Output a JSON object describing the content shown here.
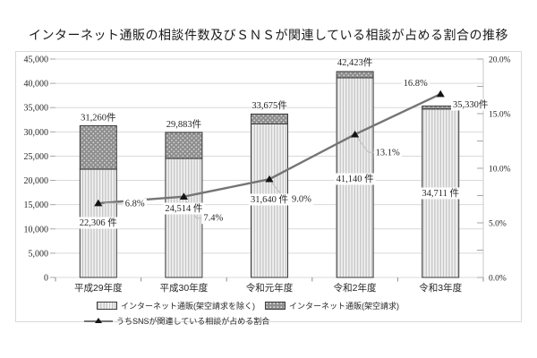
{
  "title": "インターネット通販の相談件数及びＳＮＳが関連している相談が占める割合の推移",
  "colors": {
    "grid": "#d9d9d9",
    "frame_border": "#d9d9d9",
    "axis_text": "#404040",
    "label_text": "#262626",
    "tick": "#a6a6a6",
    "bar_border": "#3a3a3a",
    "bar_light_bg": "#f1f1f1",
    "bar_light_stripe": "#c7c7c7",
    "bar_dark_bg": "#8f8f8f",
    "bar_dark_dot": "#e2e2e2",
    "line": "#757575",
    "marker": "#141414",
    "leader": "#bfbfbf"
  },
  "chart_data": {
    "type": "bar",
    "subtype": "stacked bars (left axis, 件数) + line with triangle markers (right axis, %)",
    "title": "インターネット通販の相談件数及びＳＮＳが関連している相談が占める割合の推移",
    "categories": [
      "平成29年度",
      "平成30年度",
      "令和元年度",
      "令和2年度",
      "令和3年度"
    ],
    "series": [
      {
        "name": "インターネット通販(架空請求を除く)",
        "type": "bar-stack-bottom",
        "axis": "left",
        "values": [
          22306,
          24514,
          31640,
          41140,
          34711
        ],
        "labels": [
          "22,306 件",
          "24,514 件",
          "31,640 件",
          "41,140 件",
          "34,711 件"
        ]
      },
      {
        "name": "インターネット通販(架空請求)",
        "type": "bar-stack-top",
        "axis": "left",
        "values": [
          8954,
          5369,
          2035,
          1283,
          619
        ],
        "totals": [
          31260,
          29883,
          33675,
          42423,
          35330
        ],
        "total_labels": [
          "31,260件",
          "29,883件",
          "33,675件",
          "42,423件",
          "35,330件"
        ]
      },
      {
        "name": "うちSNSが関連している相談が占める割合",
        "type": "line",
        "axis": "right",
        "values": [
          6.8,
          7.4,
          9.0,
          13.1,
          16.8
        ],
        "labels": [
          "6.8%",
          "7.4%",
          "9.0%",
          "13.1%",
          "16.8%"
        ]
      }
    ],
    "left_axis": {
      "min": 0,
      "max": 45000,
      "tick_step": 5000,
      "tick_labels": [
        "45,000",
        "40,000",
        "35,000",
        "30,000",
        "25,000",
        "20,000",
        "15,000",
        "10,000",
        "5,000",
        "0"
      ]
    },
    "right_axis": {
      "min": 0,
      "max": 20,
      "tick_step": 5,
      "minor_tick_step": 2.5,
      "tick_labels": [
        "20.0%",
        "15.0%",
        "10.0%",
        "5.0%",
        "0.0%"
      ]
    },
    "grid": "horizontal gridlines every 5,000 (left axis)",
    "legend_position": "bottom"
  },
  "legend": {
    "items": [
      {
        "swatch": "bar-light-hatch",
        "label": "インターネット通販(架空請求を除く)"
      },
      {
        "swatch": "bar-dark-dots",
        "label": "インターネット通販(架空請求)"
      },
      {
        "swatch": "line-triangle-marker",
        "label": "うちSNSが関連している相談が占める割合"
      }
    ]
  }
}
